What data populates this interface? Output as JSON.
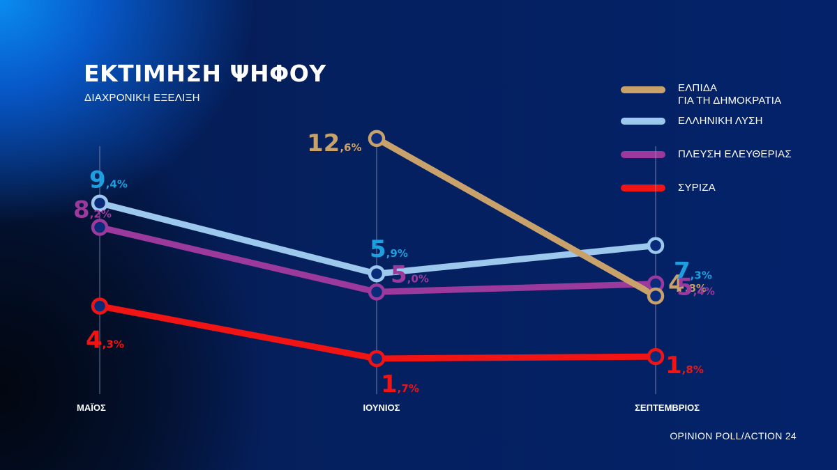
{
  "title": "ΕΚΤΙΜΗΣΗ ΨΗΦΟΥ",
  "subtitle": "ΔΙΑΧΡΟΝΙΚΗ ΕΞΕΛΙΞΗ",
  "source": "OPINION POLL/ACTION 24",
  "colors": {
    "background": "#05205e",
    "gridline": "#8a96b8"
  },
  "chart_data": {
    "type": "line",
    "title": "ΕΚΤΙΜΗΣΗ ΨΗΦΟΥ",
    "subtitle": "ΔΙΑΧΡΟΝΙΚΗ ΕΞΕΛΙΞΗ",
    "categories": [
      "ΜΑΪΟΣ",
      "ΙΟΥΝΙΟΣ",
      "ΣΕΠΤΕΜΒΡΙΟΣ"
    ],
    "unit": "%",
    "legend_position": "top-right",
    "grid": "vertical lines at each category",
    "series": [
      {
        "name": "ΕΛΠΙΔΑ\nΓΙΑ ΤΗ ΔΗΜΟΚΡΑΤΙΑ",
        "color": "#c8a26a",
        "label_color": "#c8a26a",
        "values": [
          null,
          12.6,
          4.8
        ],
        "labels": [
          null,
          "12,6",
          "4,8"
        ]
      },
      {
        "name": "ΕΛΛΗΝΙΚΗ ΛΥΣΗ",
        "color": "#9cc8ee",
        "label_color": "#1ea0e0",
        "values": [
          9.4,
          5.9,
          7.3
        ],
        "labels": [
          "9,4",
          "5,9",
          "7,3"
        ]
      },
      {
        "name": "ΠΛΕΥΣΗ ΕΛΕΥΘΕΡΙΑΣ",
        "color": "#9b3a9c",
        "label_color": "#9b3a9c",
        "values": [
          8.2,
          5.0,
          5.4
        ],
        "labels": [
          "8,2",
          "5,0",
          "5,4"
        ]
      },
      {
        "name": "ΣΥΡΙΖΑ",
        "color": "#f01414",
        "label_color": "#f01414",
        "values": [
          4.3,
          1.7,
          1.8
        ],
        "labels": [
          "4,3",
          "1,7",
          "1,8"
        ]
      }
    ]
  }
}
